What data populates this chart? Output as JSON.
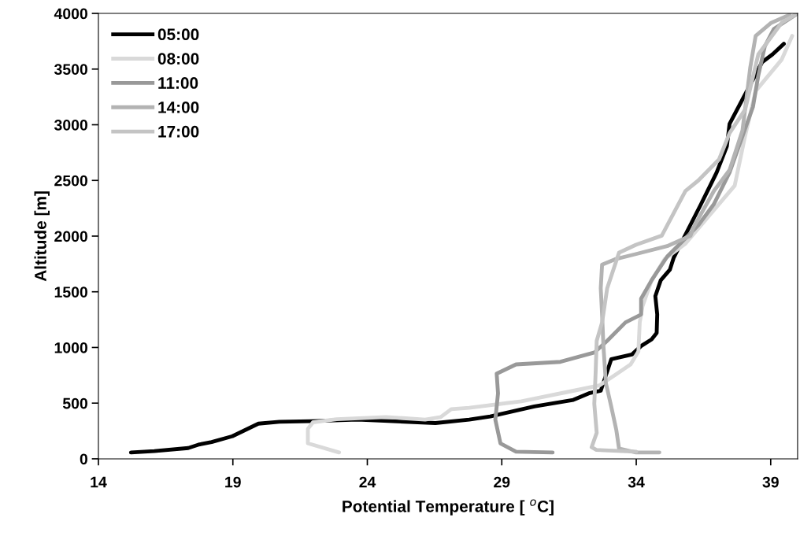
{
  "chart_data": {
    "type": "line",
    "xlabel": "Potential Temperature [ $^{o}$C]",
    "ylabel": "Altitude [m]",
    "xlim": [
      14,
      40
    ],
    "xticks": [
      14,
      19,
      24,
      29,
      34,
      39
    ],
    "ylim": [
      0,
      4000
    ],
    "yticks": [
      0,
      500,
      1000,
      1500,
      2000,
      2500,
      3000,
      3500,
      4000
    ],
    "grid": false,
    "legend": "top left",
    "marker": "none",
    "series": [
      {
        "name": "05:00",
        "color": "#000000",
        "x": [
          15.21,
          16.08,
          17.34,
          17.72,
          18.21,
          18.98,
          19.95,
          20.73,
          21.89,
          23.63,
          26.53,
          27.79,
          28.57,
          30.21,
          31.66,
          32.24,
          32.68,
          33.07,
          33.84,
          34.18,
          34.57,
          34.76,
          34.78,
          34.71,
          34.91,
          35.25,
          35.39,
          36.41,
          36.99,
          37.37,
          37.47,
          38.68,
          39.07,
          39.49
        ],
        "values": [
          57,
          69,
          97,
          127,
          151,
          203,
          316,
          333,
          338,
          352,
          321,
          352,
          380,
          470,
          529,
          588,
          611,
          894,
          937,
          1013,
          1072,
          1131,
          1296,
          1461,
          1603,
          1698,
          1804,
          2288,
          2571,
          2807,
          3008,
          3562,
          3633,
          3727
        ]
      },
      {
        "name": "08:00",
        "color": "#d9d9d9",
        "x": [
          22.95,
          21.79,
          21.79,
          21.98,
          22.86,
          24.69,
          26.15,
          26.73,
          27.12,
          27.79,
          29.73,
          31.66,
          32.63,
          33.21,
          33.79,
          34.08,
          34.13,
          34.23,
          34.57,
          35.05,
          35.83,
          37.66,
          38.05,
          38.44,
          39.41,
          39.8
        ],
        "values": [
          57,
          139,
          269,
          328,
          356,
          375,
          352,
          375,
          446,
          458,
          517,
          611,
          659,
          753,
          848,
          965,
          1225,
          1367,
          1603,
          1792,
          1933,
          2453,
          2902,
          3303,
          3586,
          3798
        ]
      },
      {
        "name": "11:00",
        "color": "#999999",
        "x": [
          30.89,
          29.53,
          28.95,
          28.76,
          28.86,
          28.81,
          29.53,
          31.18,
          32.44,
          32.92,
          33.6,
          34.18,
          34.18,
          34.57,
          35.15,
          35.83,
          36.31,
          36.89,
          37.47,
          38.34,
          38.54,
          38.78,
          39.12,
          40
        ],
        "values": [
          57,
          64,
          139,
          352,
          588,
          765,
          848,
          871,
          954,
          1060,
          1225,
          1296,
          1438,
          1603,
          1816,
          1981,
          2098,
          2288,
          2571,
          3161,
          3444,
          3704,
          3861,
          4000
        ]
      },
      {
        "name": "14:00",
        "color": "#b3b3b3",
        "x": [
          34.86,
          33.99,
          33.36,
          33.26,
          33.07,
          32.87,
          32.78,
          32.73,
          32.68,
          32.73,
          33.21,
          33.99,
          35.15,
          36.02,
          36.12,
          36.89,
          37.47,
          37.95,
          38.24,
          38.44,
          39.02,
          39.7
        ],
        "values": [
          57,
          57,
          92,
          257,
          470,
          682,
          1013,
          1296,
          1532,
          1744,
          1792,
          1839,
          1910,
          2004,
          2075,
          2406,
          2594,
          2948,
          3515,
          3798,
          3916,
          3987
        ]
      },
      {
        "name": "17:00",
        "color": "#c4c4c4",
        "x": [
          34.0,
          32.52,
          32.34,
          32.53,
          32.44,
          32.49,
          32.53,
          32.73,
          32.92,
          33.36,
          33.99,
          34.95,
          35.83,
          36.31,
          37.08,
          37.47,
          38.05,
          38.54,
          39.41,
          39.9
        ],
        "values": [
          64,
          80,
          104,
          234,
          494,
          777,
          1060,
          1225,
          1532,
          1851,
          1922,
          2004,
          2406,
          2500,
          2689,
          2925,
          3137,
          3633,
          3916,
          3987
        ]
      }
    ]
  }
}
